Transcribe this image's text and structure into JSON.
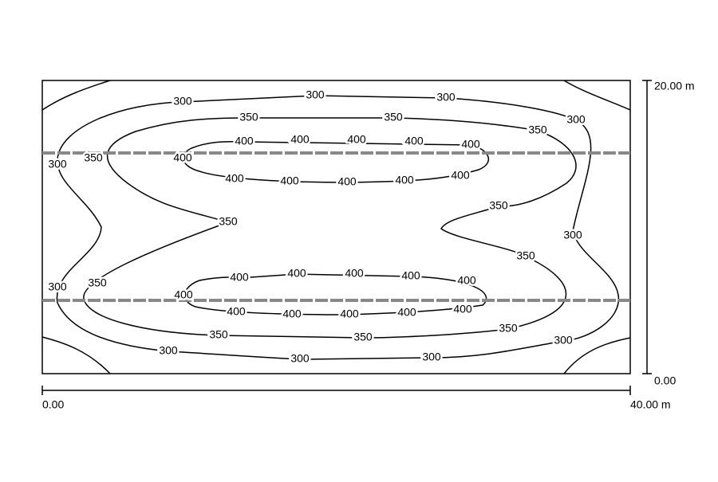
{
  "contours": {
    "labels": [
      "300",
      "300",
      "300",
      "300",
      "300",
      "300",
      "300",
      "300",
      "300",
      "300",
      "300",
      "350",
      "350",
      "350",
      "350",
      "350",
      "350",
      "350",
      "350",
      "350",
      "350",
      "350",
      "400",
      "400",
      "400",
      "400",
      "400",
      "400",
      "400",
      "400",
      "400",
      "400",
      "400",
      "400",
      "400",
      "400",
      "400",
      "400",
      "400",
      "400",
      "400",
      "400",
      "400",
      "400"
    ]
  },
  "scale": {
    "y_top": "20.00 m",
    "y_bottom": "0.00",
    "x_left": "0.00",
    "x_right": "40.00 m"
  }
}
